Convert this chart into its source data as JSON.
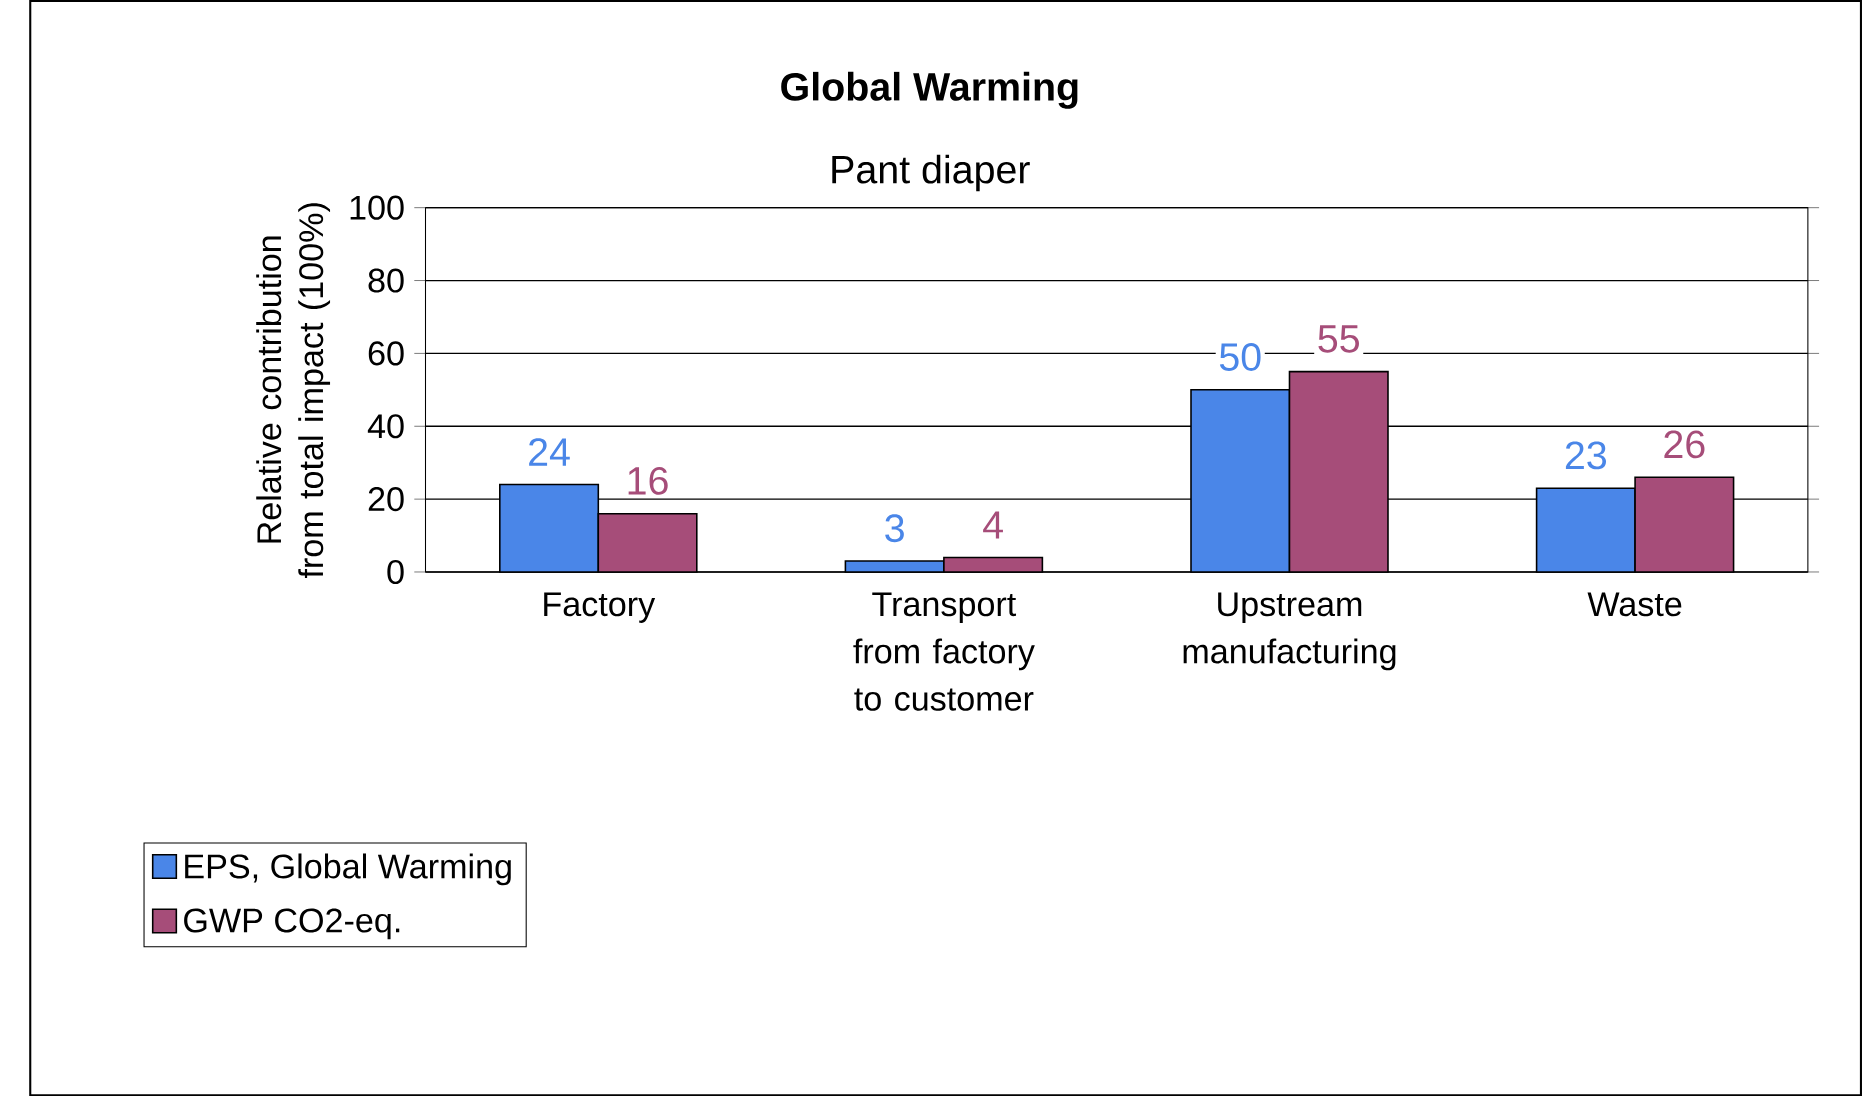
{
  "chart_data": {
    "type": "bar",
    "title": "Global Warming",
    "subtitle": "Pant diaper",
    "ylabel": "Relative contribution from total impact (100%)",
    "categories": [
      "Factory",
      "Transport from factory to customer",
      "Upstream manufacturing",
      "Waste"
    ],
    "series": [
      {
        "name": "EPS, Global Warming",
        "color": "#4a86e8",
        "values": [
          24,
          3,
          50,
          23
        ]
      },
      {
        "name": "GWP CO2-eq.",
        "color": "#a64d79",
        "values": [
          16,
          4,
          55,
          26
        ]
      }
    ],
    "ylim": [
      0,
      100
    ],
    "yticks": [
      0,
      20,
      40,
      60,
      80,
      100
    ],
    "grid": "y",
    "legend": "bottom left",
    "data_labels": true
  }
}
